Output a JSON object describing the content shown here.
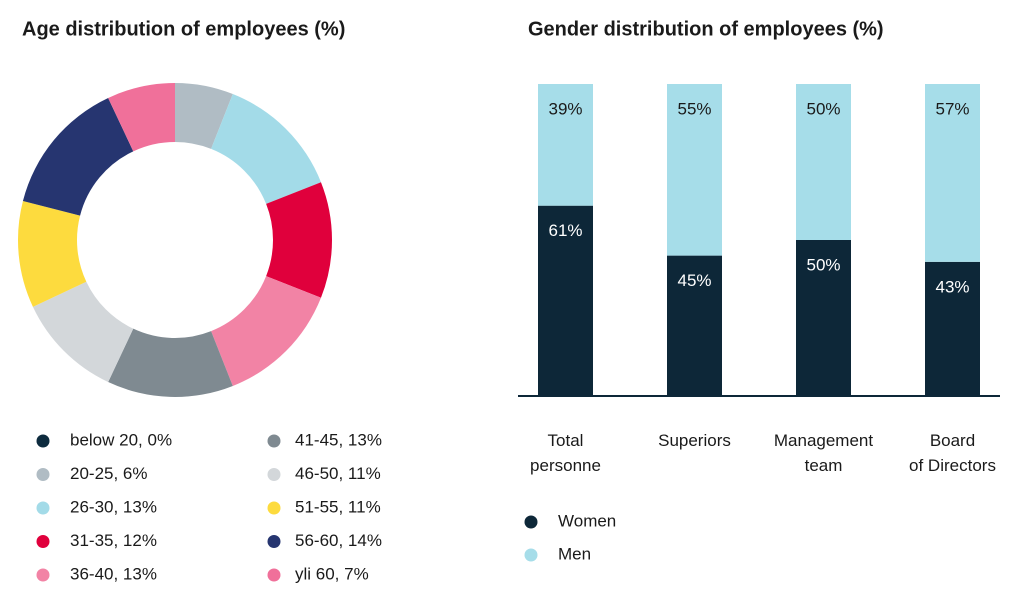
{
  "chart_data": [
    {
      "type": "donut",
      "title": "Age distribution of employees (%)",
      "categories": [
        "below 20, 0%",
        "20-25, 6%",
        "26-30, 13%",
        "31-35, 12%",
        "36-40, 13%",
        "41-45, 13%",
        "46-50, 11%",
        "51-55, 11%",
        "56-60, 14%",
        "yli 60, 7%"
      ],
      "values": [
        0,
        6,
        13,
        12,
        13,
        13,
        11,
        11,
        14,
        7
      ],
      "colors": [
        "#0d2b3e",
        "#b0bcc4",
        "#a3dbe8",
        "#e0003c",
        "#f283a5",
        "#7f8a91",
        "#d3d7da",
        "#fddb3e",
        "#263570",
        "#f0709a"
      ]
    },
    {
      "type": "stacked_bar",
      "title": "Gender distribution of employees (%)",
      "categories": [
        "Total\npersonne",
        "Superiors",
        "Management\nteam",
        "Board\nof Directors"
      ],
      "series": [
        {
          "name": "Women",
          "color": "#0d2738",
          "values": [
            61,
            45,
            50,
            43
          ],
          "value_labels": [
            "61%",
            "45%",
            "50%",
            "43%"
          ]
        },
        {
          "name": "Men",
          "color": "#a6dde9",
          "values": [
            39,
            55,
            50,
            57
          ],
          "value_labels": [
            "39%",
            "55%",
            "50%",
            "57%"
          ]
        }
      ],
      "ylim": [
        0,
        100
      ]
    }
  ]
}
